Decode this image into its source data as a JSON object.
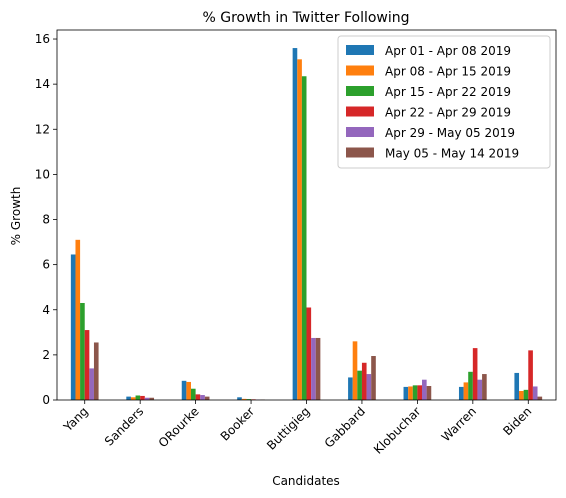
{
  "chart_data": {
    "type": "bar",
    "title": "% Growth in Twitter Following",
    "xlabel": "Candidates",
    "ylabel": "% Growth",
    "ylim": [
      0,
      16.4
    ],
    "yticks": [
      0,
      2,
      4,
      6,
      8,
      10,
      12,
      14,
      16
    ],
    "grid": false,
    "legend_position": "top-right",
    "categories": [
      "Yang",
      "Sanders",
      "ORourke",
      "Booker",
      "Buttigieg",
      "Gabbard",
      "Klobuchar",
      "Warren",
      "Biden"
    ],
    "series": [
      {
        "name": "Apr 01 - Apr 08 2019",
        "color": "#1f77b4",
        "values": [
          6.45,
          0.15,
          0.85,
          0.12,
          15.6,
          1.0,
          0.58,
          0.58,
          1.2
        ]
      },
      {
        "name": "Apr 08 - Apr 15 2019",
        "color": "#ff7f0e",
        "values": [
          7.1,
          0.12,
          0.8,
          0.05,
          15.1,
          2.6,
          0.6,
          0.78,
          0.4
        ]
      },
      {
        "name": "Apr 15 - Apr 22 2019",
        "color": "#2ca02c",
        "values": [
          4.3,
          0.2,
          0.5,
          0.04,
          14.35,
          1.3,
          0.65,
          1.25,
          0.45
        ]
      },
      {
        "name": "Apr 22 - Apr 29 2019",
        "color": "#d62728",
        "values": [
          3.1,
          0.18,
          0.25,
          0.03,
          4.1,
          1.65,
          0.65,
          2.3,
          2.2
        ]
      },
      {
        "name": "Apr 29 - May 05 2019",
        "color": "#9467bd",
        "values": [
          1.4,
          0.1,
          0.22,
          0.02,
          2.75,
          1.15,
          0.9,
          0.9,
          0.6
        ]
      },
      {
        "name": "May 05 - May 14 2019",
        "color": "#8c564b",
        "values": [
          2.55,
          0.1,
          0.15,
          0.02,
          2.75,
          1.95,
          0.62,
          1.15,
          0.15
        ]
      }
    ]
  }
}
